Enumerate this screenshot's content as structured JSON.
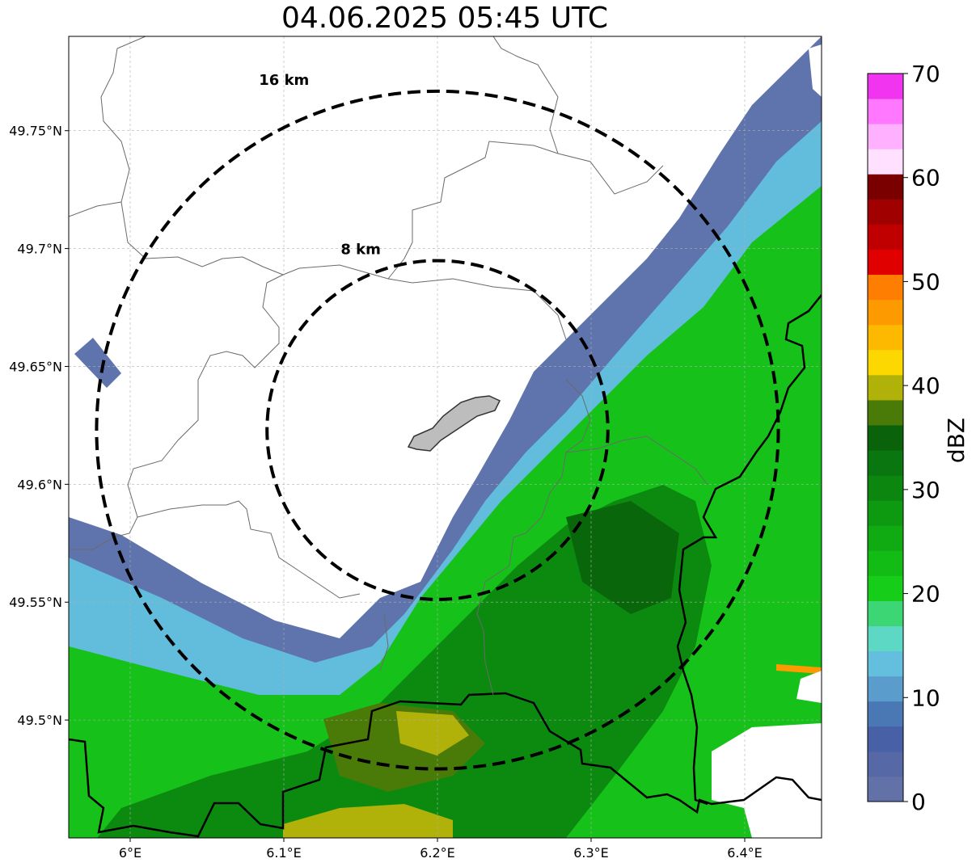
{
  "map": {
    "title": "04.06.2025 05:45 UTC",
    "lon_range": [
      5.96,
      6.45
    ],
    "lat_range": [
      49.45,
      49.79
    ],
    "lon_ticks": [
      {
        "value": 6.0,
        "label": "6°E"
      },
      {
        "value": 6.1,
        "label": "6.1°E"
      },
      {
        "value": 6.2,
        "label": "6.2°E"
      },
      {
        "value": 6.3,
        "label": "6.3°E"
      },
      {
        "value": 6.4,
        "label": "6.4°E"
      }
    ],
    "lat_ticks": [
      {
        "value": 49.5,
        "label": "49.5°N"
      },
      {
        "value": 49.55,
        "label": "49.55°N"
      },
      {
        "value": 49.6,
        "label": "49.6°N"
      },
      {
        "value": 49.65,
        "label": "49.65°N"
      },
      {
        "value": 49.7,
        "label": "49.7°N"
      },
      {
        "value": 49.75,
        "label": "49.75°N"
      }
    ],
    "gridlines": true,
    "radar_center": {
      "lon": 6.2,
      "lat": 49.623
    },
    "range_rings": [
      {
        "radius_km": 8,
        "label": "8 km"
      },
      {
        "radius_km": 16,
        "label": "16 km"
      }
    ]
  },
  "colorbar": {
    "label": "dBZ",
    "min": 0,
    "max": 70,
    "ticks": [
      "0",
      "10",
      "20",
      "30",
      "40",
      "50",
      "60",
      "70"
    ],
    "colors": [
      "#6272a8",
      "#5668a6",
      "#4860a6",
      "#4a78b4",
      "#5a9ccc",
      "#64bede",
      "#5cd8c4",
      "#3cd675",
      "#16cd1a",
      "#12bc14",
      "#10aa12",
      "#0e9a10",
      "#0c860e",
      "#0a7610",
      "#0a620a",
      "#4a7a08",
      "#b0b20a",
      "#fdd800",
      "#fdb800",
      "#fd9a00",
      "#fd7e00",
      "#e00000",
      "#c00000",
      "#a00000",
      "#7a0000",
      "#ffe0ff",
      "#ffb0ff",
      "#ff78ff",
      "#f034f0"
    ]
  }
}
